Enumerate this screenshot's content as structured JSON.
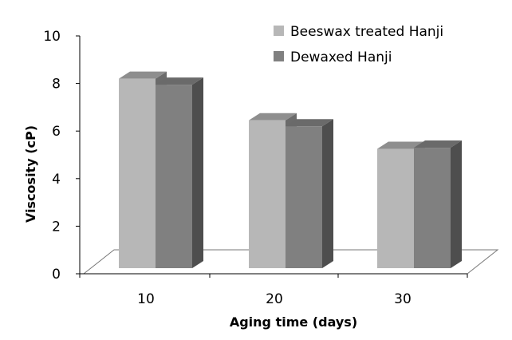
{
  "chart_data": {
    "type": "bar",
    "title": "",
    "xlabel": "Aging time (days)",
    "ylabel": "Viscosity (cP)",
    "categories": [
      "10",
      "20",
      "30"
    ],
    "series": [
      {
        "name": "Beeswax treated Hanji",
        "values": [
          8.2,
          6.45,
          5.25
        ]
      },
      {
        "name": "Dewaxed Hanji",
        "values": [
          7.95,
          6.2,
          5.3
        ]
      }
    ],
    "ylim": [
      0,
      10
    ],
    "yticks": [
      "0",
      "2",
      "4",
      "6",
      "8",
      "10"
    ],
    "grid": false,
    "legend_position": "top-right",
    "style": "3d-clustered-column"
  },
  "colors": {
    "series": [
      {
        "front": "#b7b7b7",
        "top": "#8e8e8e",
        "side": "#6b6b6b"
      },
      {
        "front": "#808080",
        "top": "#6a6a6a",
        "side": "#4e4e4e"
      }
    ],
    "axis": "#000000",
    "floor": "#ffffff"
  }
}
